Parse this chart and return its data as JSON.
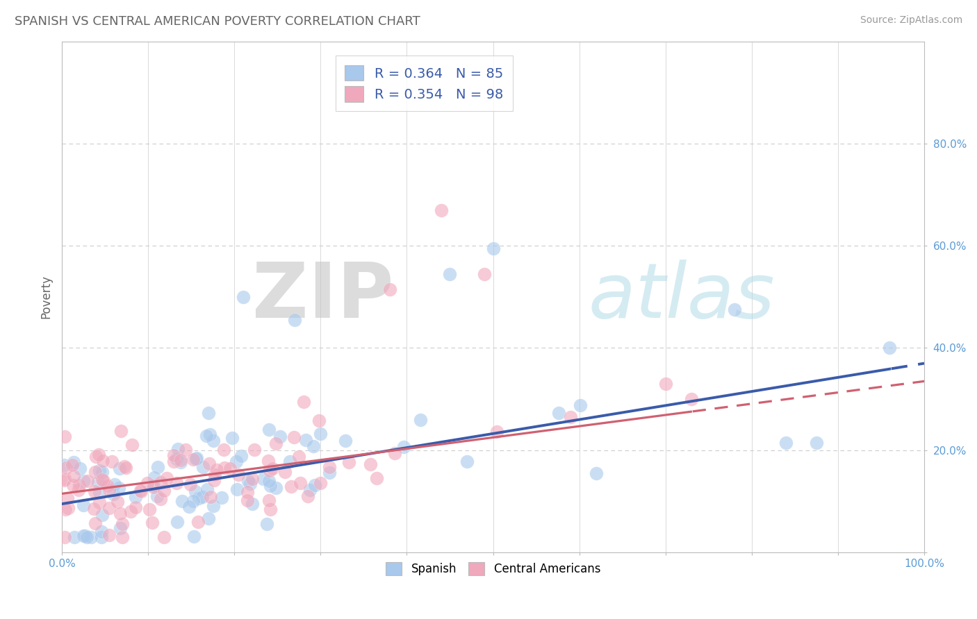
{
  "title": "SPANISH VS CENTRAL AMERICAN POVERTY CORRELATION CHART",
  "source": "Source: ZipAtlas.com",
  "ylabel": "Poverty",
  "xlim": [
    0.0,
    1.0
  ],
  "ylim": [
    0.0,
    1.0
  ],
  "blue_color": "#A8C8EC",
  "pink_color": "#F0A8BC",
  "blue_line_color": "#3A5BAA",
  "pink_line_color": "#D06070",
  "legend_blue_label": "R = 0.364   N = 85",
  "legend_pink_label": "R = 0.354   N = 98",
  "spanish_label": "Spanish",
  "central_label": "Central Americans",
  "watermark_zip": "ZIP",
  "watermark_atlas": "atlas",
  "background_color": "#FFFFFF",
  "grid_color": "#CCCCCC",
  "tick_color": "#5B9BD5",
  "title_color": "#666666",
  "source_color": "#999999",
  "ylabel_color": "#666666"
}
